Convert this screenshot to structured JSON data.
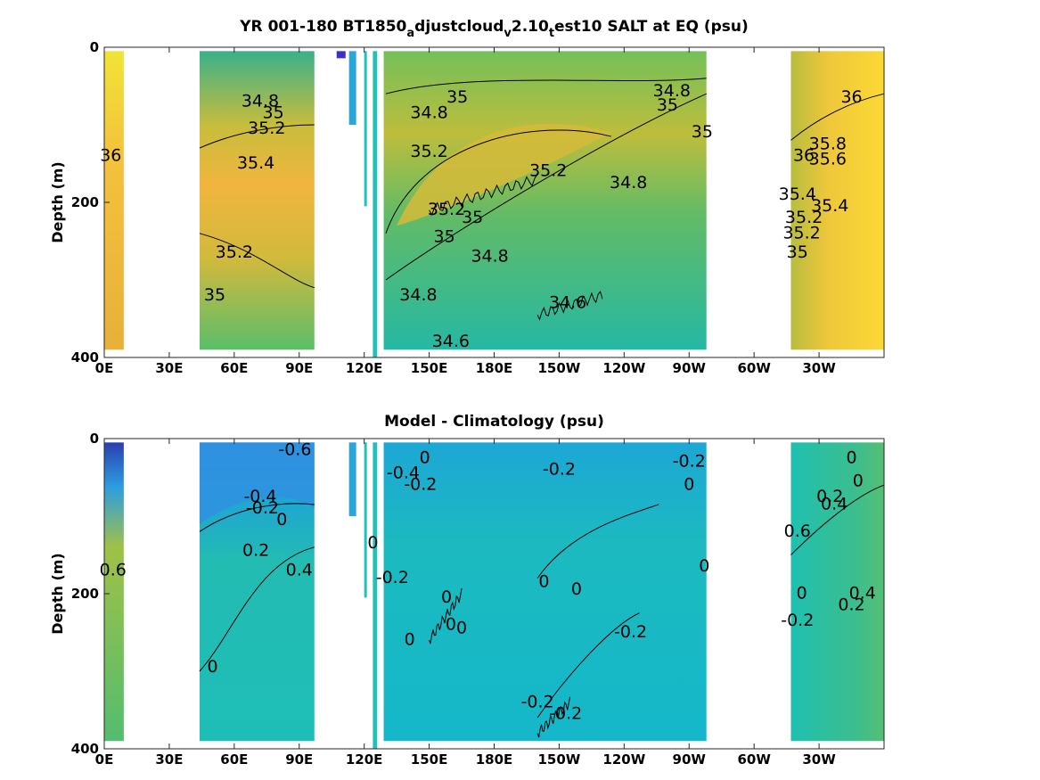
{
  "chart_data": [
    {
      "type": "heatmap",
      "title_parts": [
        {
          "t": "YR 001-180 BT1850"
        },
        {
          "t": "a",
          "sub": true
        },
        {
          "t": "djustcloud"
        },
        {
          "t": "v",
          "sub": true
        },
        {
          "t": "2.10"
        },
        {
          "t": "t",
          "sub": true
        },
        {
          "t": "est10 SALT at EQ (psu)"
        }
      ],
      "ylabel": "Depth (m)",
      "ylim": [
        400,
        0
      ],
      "yticks": [
        "0",
        "200",
        "400"
      ],
      "xticks": [
        "0E",
        "30E",
        "60E",
        "90E",
        "120E",
        "150E",
        "180E",
        "150W",
        "120W",
        "90W",
        "60W",
        "30W"
      ],
      "colormap": "parula",
      "ocean_segments_lon": [
        [
          0,
          9
        ],
        [
          44,
          97
        ],
        [
          124,
          126
        ],
        [
          129,
          278
        ],
        [
          317,
          360
        ]
      ],
      "background_color": "#21c0b8",
      "contour_labels": [
        {
          "text": "34.8",
          "lon": 150,
          "depth": 85
        },
        {
          "text": "35",
          "lon": 163,
          "depth": 65
        },
        {
          "text": "34.8",
          "lon": 262,
          "depth": 57
        },
        {
          "text": "35",
          "lon": 260,
          "depth": 75
        },
        {
          "text": "35",
          "lon": 276,
          "depth": 110
        },
        {
          "text": "35.2",
          "lon": 150,
          "depth": 135
        },
        {
          "text": "35.2",
          "lon": 205,
          "depth": 160
        },
        {
          "text": "34.8",
          "lon": 242,
          "depth": 175
        },
        {
          "text": "35.2",
          "lon": 158,
          "depth": 210
        },
        {
          "text": "35",
          "lon": 170,
          "depth": 220
        },
        {
          "text": "35",
          "lon": 157,
          "depth": 245
        },
        {
          "text": "34.8",
          "lon": 178,
          "depth": 270
        },
        {
          "text": "34.8",
          "lon": 145,
          "depth": 320
        },
        {
          "text": "34.6",
          "lon": 214,
          "depth": 330
        },
        {
          "text": "34.6",
          "lon": 160,
          "depth": 380
        },
        {
          "text": "34.8",
          "lon": 72,
          "depth": 70
        },
        {
          "text": "35",
          "lon": 78,
          "depth": 85
        },
        {
          "text": "35.2",
          "lon": 75,
          "depth": 105
        },
        {
          "text": "35.4",
          "lon": 70,
          "depth": 150
        },
        {
          "text": "35.2",
          "lon": 60,
          "depth": 265
        },
        {
          "text": "35",
          "lon": 51,
          "depth": 320
        },
        {
          "text": "36",
          "lon": 3,
          "depth": 140
        },
        {
          "text": "36",
          "lon": 345,
          "depth": 65
        },
        {
          "text": "36",
          "lon": 323,
          "depth": 140
        },
        {
          "text": "35.8",
          "lon": 334,
          "depth": 125
        },
        {
          "text": "35.6",
          "lon": 334,
          "depth": 145
        },
        {
          "text": "35.4",
          "lon": 320,
          "depth": 190
        },
        {
          "text": "35.2",
          "lon": 323,
          "depth": 220
        },
        {
          "text": "35",
          "lon": 320,
          "depth": 265
        },
        {
          "text": "35.2",
          "lon": 322,
          "depth": 240
        },
        {
          "text": "35.4",
          "lon": 335,
          "depth": 205
        }
      ]
    },
    {
      "type": "heatmap",
      "title_parts": [
        {
          "t": "Model - Climatology (psu)"
        }
      ],
      "ylabel": "Depth (m)",
      "ylim": [
        400,
        0
      ],
      "yticks": [
        "0",
        "200",
        "400"
      ],
      "xticks": [
        "0E",
        "30E",
        "60E",
        "90E",
        "120E",
        "150E",
        "180E",
        "150W",
        "120W",
        "90W",
        "60W",
        "30W"
      ],
      "colormap": "parula",
      "ocean_segments_lon": [
        [
          0,
          9
        ],
        [
          44,
          97
        ],
        [
          124,
          126
        ],
        [
          129,
          278
        ],
        [
          317,
          360
        ]
      ],
      "background_color": "#21c0b8",
      "contour_labels": [
        {
          "text": "-0.6",
          "lon": 88,
          "depth": 15
        },
        {
          "text": "-0.4",
          "lon": 72,
          "depth": 75
        },
        {
          "text": "-0.2",
          "lon": 73,
          "depth": 90
        },
        {
          "text": "0",
          "lon": 82,
          "depth": 105
        },
        {
          "text": "0.2",
          "lon": 70,
          "depth": 145
        },
        {
          "text": "0.4",
          "lon": 90,
          "depth": 170
        },
        {
          "text": "0",
          "lon": 50,
          "depth": 295
        },
        {
          "text": "0.6",
          "lon": 4,
          "depth": 170
        },
        {
          "text": "-0.4",
          "lon": 138,
          "depth": 45
        },
        {
          "text": "-0.2",
          "lon": 146,
          "depth": 60
        },
        {
          "text": "0",
          "lon": 148,
          "depth": 25
        },
        {
          "text": "-0.2",
          "lon": 210,
          "depth": 40
        },
        {
          "text": "-0.2",
          "lon": 270,
          "depth": 30
        },
        {
          "text": "0",
          "lon": 270,
          "depth": 60
        },
        {
          "text": "0",
          "lon": 124,
          "depth": 135
        },
        {
          "text": "-0.2",
          "lon": 133,
          "depth": 180
        },
        {
          "text": "0",
          "lon": 277,
          "depth": 165
        },
        {
          "text": "0",
          "lon": 203,
          "depth": 185
        },
        {
          "text": "0",
          "lon": 218,
          "depth": 195
        },
        {
          "text": "0",
          "lon": 158,
          "depth": 205
        },
        {
          "text": "0",
          "lon": 160,
          "depth": 240
        },
        {
          "text": "0",
          "lon": 165,
          "depth": 245
        },
        {
          "text": "0",
          "lon": 141,
          "depth": 260
        },
        {
          "text": "-0.2",
          "lon": 243,
          "depth": 250
        },
        {
          "text": "-0.2",
          "lon": 200,
          "depth": 340
        },
        {
          "text": "-0.2",
          "lon": 213,
          "depth": 355
        },
        {
          "text": "0",
          "lon": 345,
          "depth": 25
        },
        {
          "text": "0",
          "lon": 348,
          "depth": 55
        },
        {
          "text": "0.2",
          "lon": 335,
          "depth": 75
        },
        {
          "text": "0.4",
          "lon": 337,
          "depth": 85
        },
        {
          "text": "0.6",
          "lon": 320,
          "depth": 120
        },
        {
          "text": "0",
          "lon": 322,
          "depth": 200
        },
        {
          "text": "0.2",
          "lon": 345,
          "depth": 215
        },
        {
          "text": "0.4",
          "lon": 350,
          "depth": 200
        },
        {
          "text": "-0.2",
          "lon": 320,
          "depth": 235
        }
      ]
    }
  ]
}
